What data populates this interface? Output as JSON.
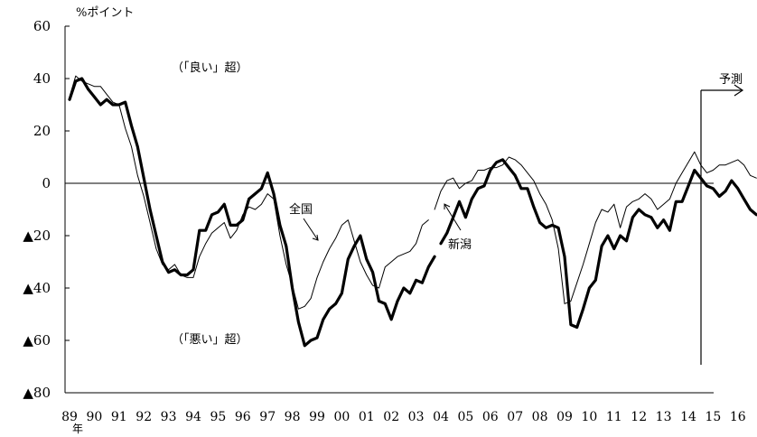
{
  "chart_data": {
    "type": "line",
    "unit_label": "%ポイント",
    "ylim": [
      -80,
      60
    ],
    "y_ticks": [
      60,
      40,
      20,
      0,
      -20,
      -40,
      -60,
      -80
    ],
    "y_tick_labels": [
      "60",
      "40",
      "20",
      "0",
      "▲20",
      "▲40",
      "▲60",
      "▲80"
    ],
    "x_range": [
      1989,
      2016.75
    ],
    "x_tick_labels": [
      "89",
      "90",
      "91",
      "92",
      "93",
      "94",
      "95",
      "96",
      "97",
      "98",
      "99",
      "00",
      "01",
      "02",
      "03",
      "04",
      "05",
      "06",
      "07",
      "08",
      "09",
      "10",
      "11",
      "12",
      "13",
      "14",
      "15",
      "16"
    ],
    "x_unit": "年",
    "annotations": {
      "good": "（「良い」超）",
      "bad": "（「悪い」超）",
      "national": "全国",
      "niigata": "新潟",
      "forecast": "予測"
    },
    "forecast_start": 2016.75,
    "colors": {
      "negative_label": "#ee0000",
      "line": "#000000"
    },
    "series": [
      {
        "name": "全国",
        "segments": [
          [
            [
              1989.0,
              33
            ],
            [
              1989.25,
              41
            ],
            [
              1989.5,
              39
            ],
            [
              1989.75,
              38
            ],
            [
              1990.0,
              37
            ],
            [
              1990.25,
              37
            ],
            [
              1990.5,
              34
            ],
            [
              1990.75,
              31
            ],
            [
              1991.0,
              30
            ],
            [
              1991.25,
              21
            ],
            [
              1991.5,
              14
            ],
            [
              1991.75,
              3
            ],
            [
              1992.0,
              -5
            ],
            [
              1992.25,
              -15
            ],
            [
              1992.5,
              -25
            ],
            [
              1992.75,
              -31
            ],
            [
              1993.0,
              -33
            ],
            [
              1993.25,
              -31
            ],
            [
              1993.5,
              -35
            ],
            [
              1993.75,
              -36
            ],
            [
              1994.0,
              -36
            ],
            [
              1994.25,
              -28
            ],
            [
              1994.5,
              -23
            ],
            [
              1994.75,
              -19
            ],
            [
              1995.0,
              -17
            ],
            [
              1995.25,
              -15
            ],
            [
              1995.5,
              -21
            ],
            [
              1995.75,
              -18
            ],
            [
              1996.0,
              -12
            ],
            [
              1996.25,
              -9
            ],
            [
              1996.5,
              -10
            ],
            [
              1996.75,
              -8
            ],
            [
              1997.0,
              -4
            ],
            [
              1997.25,
              -6
            ],
            [
              1997.5,
              -20
            ],
            [
              1997.75,
              -31
            ],
            [
              1998.0,
              -39
            ],
            [
              1998.25,
              -48
            ],
            [
              1998.5,
              -47
            ],
            [
              1998.75,
              -44
            ],
            [
              1999.0,
              -36
            ],
            [
              1999.25,
              -30
            ],
            [
              1999.5,
              -25
            ],
            [
              1999.75,
              -21
            ],
            [
              2000.0,
              -16
            ],
            [
              2000.25,
              -14
            ],
            [
              2000.5,
              -22
            ],
            [
              2000.75,
              -30
            ],
            [
              2001.0,
              -35
            ],
            [
              2001.25,
              -39
            ],
            [
              2001.5,
              -40
            ],
            [
              2001.75,
              -32
            ],
            [
              2002.0,
              -30
            ],
            [
              2002.25,
              -28
            ],
            [
              2002.5,
              -27
            ],
            [
              2002.75,
              -26
            ],
            [
              2003.0,
              -23
            ],
            [
              2003.25,
              -16
            ],
            [
              2003.5,
              -14
            ]
          ],
          [
            [
              2003.75,
              -10
            ],
            [
              2004.0,
              -3
            ],
            [
              2004.25,
              1
            ],
            [
              2004.5,
              2
            ],
            [
              2004.75,
              -2
            ],
            [
              2005.0,
              0
            ],
            [
              2005.25,
              1
            ],
            [
              2005.5,
              5
            ],
            [
              2005.75,
              5
            ],
            [
              2006.0,
              6
            ],
            [
              2006.25,
              6
            ],
            [
              2006.5,
              7
            ],
            [
              2006.75,
              10
            ],
            [
              2007.0,
              9
            ],
            [
              2007.25,
              7
            ],
            [
              2007.5,
              4
            ],
            [
              2007.75,
              1
            ],
            [
              2008.0,
              -4
            ],
            [
              2008.25,
              -8
            ],
            [
              2008.5,
              -14
            ],
            [
              2008.75,
              -25
            ],
            [
              2009.0,
              -46
            ],
            [
              2009.25,
              -45
            ],
            [
              2009.5,
              -38
            ],
            [
              2009.75,
              -31
            ],
            [
              2010.0,
              -23
            ],
            [
              2010.25,
              -15
            ],
            [
              2010.5,
              -10
            ],
            [
              2010.75,
              -11
            ],
            [
              2011.0,
              -8
            ],
            [
              2011.25,
              -17
            ],
            [
              2011.5,
              -9
            ],
            [
              2011.75,
              -7
            ],
            [
              2012.0,
              -6
            ],
            [
              2012.25,
              -4
            ],
            [
              2012.5,
              -6
            ],
            [
              2012.75,
              -10
            ],
            [
              2013.0,
              -8
            ],
            [
              2013.25,
              -6
            ],
            [
              2013.5,
              0
            ],
            [
              2013.75,
              4
            ],
            [
              2014.0,
              8
            ],
            [
              2014.25,
              12
            ],
            [
              2014.5,
              7
            ],
            [
              2014.75,
              4
            ],
            [
              2015.0,
              5
            ],
            [
              2015.25,
              7
            ],
            [
              2015.5,
              7
            ],
            [
              2015.75,
              8
            ],
            [
              2016.0,
              9
            ],
            [
              2016.25,
              7
            ],
            [
              2016.5,
              3
            ],
            [
              2016.75,
              2
            ]
          ]
        ]
      },
      {
        "name": "新潟",
        "segments": [
          [
            [
              1989.0,
              32
            ],
            [
              1989.25,
              39
            ],
            [
              1989.5,
              40
            ],
            [
              1989.75,
              36
            ],
            [
              1990.0,
              33
            ],
            [
              1990.25,
              30
            ],
            [
              1990.5,
              32
            ],
            [
              1990.75,
              30
            ],
            [
              1991.0,
              30
            ],
            [
              1991.25,
              31
            ],
            [
              1991.5,
              22
            ],
            [
              1991.75,
              14
            ],
            [
              1992.0,
              2
            ],
            [
              1992.25,
              -10
            ],
            [
              1992.5,
              -20
            ],
            [
              1992.75,
              -30
            ],
            [
              1993.0,
              -34
            ],
            [
              1993.25,
              -33
            ],
            [
              1993.5,
              -35
            ],
            [
              1993.75,
              -35
            ],
            [
              1994.0,
              -33
            ],
            [
              1994.25,
              -18
            ],
            [
              1994.5,
              -18
            ],
            [
              1994.75,
              -12
            ],
            [
              1995.0,
              -11
            ],
            [
              1995.25,
              -8
            ],
            [
              1995.5,
              -16
            ],
            [
              1995.75,
              -16
            ],
            [
              1996.0,
              -14
            ],
            [
              1996.25,
              -6
            ],
            [
              1996.5,
              -4
            ],
            [
              1996.75,
              -2
            ],
            [
              1997.0,
              4
            ],
            [
              1997.25,
              -4
            ],
            [
              1997.5,
              -16
            ],
            [
              1997.75,
              -24
            ],
            [
              1998.0,
              -40
            ],
            [
              1998.25,
              -53
            ],
            [
              1998.5,
              -62
            ],
            [
              1998.75,
              -60
            ],
            [
              1999.0,
              -59
            ],
            [
              1999.25,
              -52
            ],
            [
              1999.5,
              -48
            ],
            [
              1999.75,
              -46
            ],
            [
              2000.0,
              -42
            ],
            [
              2000.25,
              -29
            ],
            [
              2000.5,
              -24
            ],
            [
              2000.75,
              -20
            ],
            [
              2001.0,
              -29
            ],
            [
              2001.25,
              -34
            ],
            [
              2001.5,
              -45
            ],
            [
              2001.75,
              -46
            ],
            [
              2002.0,
              -52
            ],
            [
              2002.25,
              -45
            ],
            [
              2002.5,
              -40
            ],
            [
              2002.75,
              -42
            ],
            [
              2003.0,
              -37
            ],
            [
              2003.25,
              -38
            ],
            [
              2003.5,
              -32
            ],
            [
              2003.75,
              -28
            ]
          ],
          [
            [
              2004.0,
              -23
            ],
            [
              2004.25,
              -19
            ],
            [
              2004.5,
              -13
            ],
            [
              2004.75,
              -7
            ],
            [
              2005.0,
              -13
            ],
            [
              2005.25,
              -6
            ],
            [
              2005.5,
              -2
            ],
            [
              2005.75,
              -1
            ],
            [
              2006.0,
              5
            ],
            [
              2006.25,
              8
            ],
            [
              2006.5,
              9
            ],
            [
              2006.75,
              6
            ],
            [
              2007.0,
              3
            ],
            [
              2007.25,
              -2
            ],
            [
              2007.5,
              -2
            ],
            [
              2007.75,
              -9
            ],
            [
              2008.0,
              -15
            ],
            [
              2008.25,
              -17
            ],
            [
              2008.5,
              -16
            ],
            [
              2008.75,
              -17
            ],
            [
              2009.0,
              -28
            ],
            [
              2009.25,
              -54
            ],
            [
              2009.5,
              -55
            ],
            [
              2009.75,
              -48
            ],
            [
              2010.0,
              -40
            ],
            [
              2010.25,
              -37
            ],
            [
              2010.5,
              -24
            ],
            [
              2010.75,
              -20
            ],
            [
              2011.0,
              -25
            ],
            [
              2011.25,
              -20
            ],
            [
              2011.5,
              -22
            ],
            [
              2011.75,
              -13
            ],
            [
              2012.0,
              -10
            ],
            [
              2012.25,
              -12
            ],
            [
              2012.5,
              -13
            ],
            [
              2012.75,
              -17
            ],
            [
              2013.0,
              -14
            ],
            [
              2013.25,
              -18
            ],
            [
              2013.5,
              -7
            ],
            [
              2013.75,
              -7
            ],
            [
              2014.0,
              -1
            ],
            [
              2014.25,
              5
            ],
            [
              2014.5,
              2
            ],
            [
              2014.75,
              -1
            ],
            [
              2015.0,
              -2
            ],
            [
              2015.25,
              -5
            ],
            [
              2015.5,
              -3
            ],
            [
              2015.75,
              1
            ],
            [
              2016.0,
              -2
            ],
            [
              2016.25,
              -6
            ],
            [
              2016.5,
              -10
            ],
            [
              2016.75,
              -12
            ]
          ]
        ]
      }
    ]
  }
}
